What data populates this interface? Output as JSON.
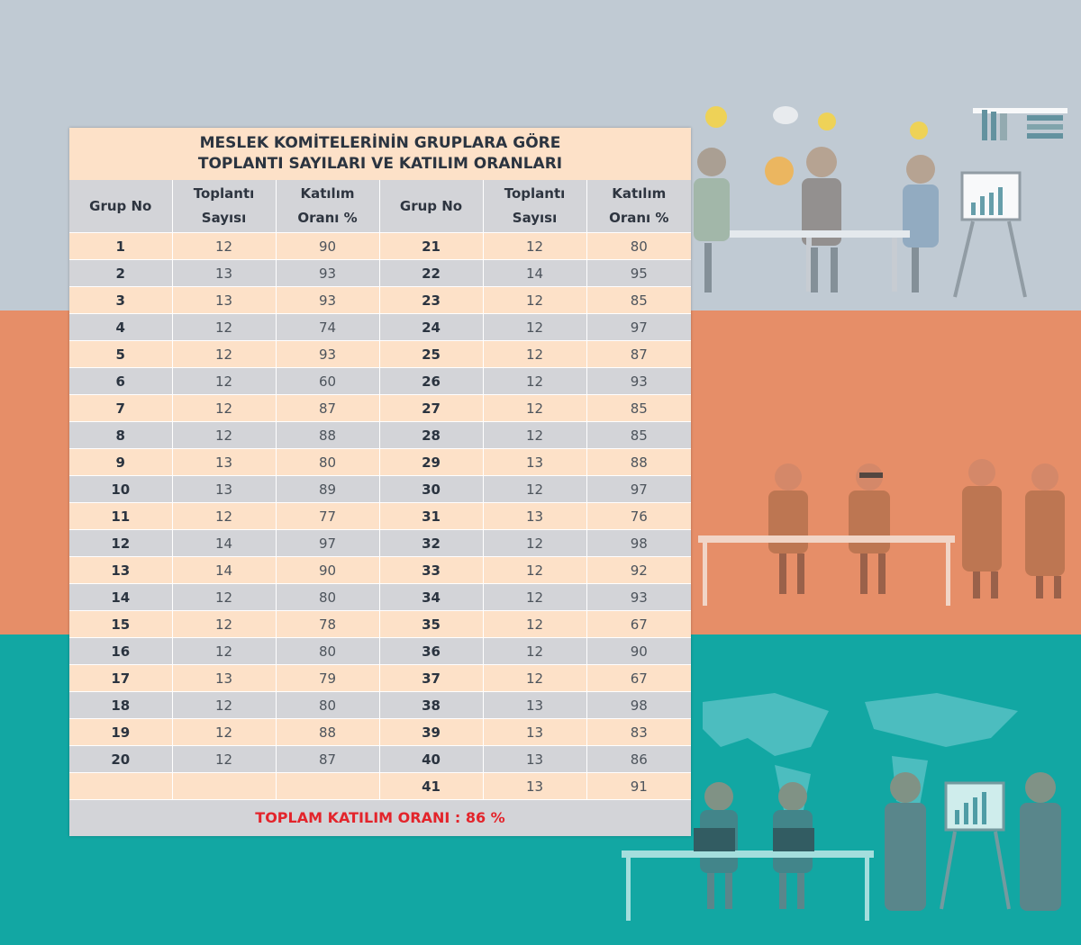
{
  "title_line1": "MESLEK KOMİTELERİNİN GRUPLARA GÖRE",
  "title_line2": "TOPLANTI SAYILARI VE KATILIM ORANLARI",
  "headers": {
    "grup_no": "Grup No",
    "toplanti_1": "Toplantı",
    "toplanti_2": "Sayısı",
    "katilim_1": "Katılım",
    "katilim_2": "Oranı %"
  },
  "rows": [
    [
      "1",
      "12",
      "90",
      "21",
      "12",
      "80"
    ],
    [
      "2",
      "13",
      "93",
      "22",
      "14",
      "95"
    ],
    [
      "3",
      "13",
      "93",
      "23",
      "12",
      "85"
    ],
    [
      "4",
      "12",
      "74",
      "24",
      "12",
      "97"
    ],
    [
      "5",
      "12",
      "93",
      "25",
      "12",
      "87"
    ],
    [
      "6",
      "12",
      "60",
      "26",
      "12",
      "93"
    ],
    [
      "7",
      "12",
      "87",
      "27",
      "12",
      "85"
    ],
    [
      "8",
      "12",
      "88",
      "28",
      "12",
      "85"
    ],
    [
      "9",
      "13",
      "80",
      "29",
      "13",
      "88"
    ],
    [
      "10",
      "13",
      "89",
      "30",
      "12",
      "97"
    ],
    [
      "11",
      "12",
      "77",
      "31",
      "13",
      "76"
    ],
    [
      "12",
      "14",
      "97",
      "32",
      "12",
      "98"
    ],
    [
      "13",
      "14",
      "90",
      "33",
      "12",
      "92"
    ],
    [
      "14",
      "12",
      "80",
      "34",
      "12",
      "93"
    ],
    [
      "15",
      "12",
      "78",
      "35",
      "12",
      "67"
    ],
    [
      "16",
      "12",
      "80",
      "36",
      "12",
      "90"
    ],
    [
      "17",
      "13",
      "79",
      "37",
      "12",
      "67"
    ],
    [
      "18",
      "12",
      "80",
      "38",
      "13",
      "98"
    ],
    [
      "19",
      "12",
      "88",
      "39",
      "13",
      "83"
    ],
    [
      "20",
      "12",
      "87",
      "40",
      "13",
      "86"
    ],
    [
      "",
      "",
      "",
      "41",
      "13",
      "91"
    ]
  ],
  "total": "TOPLAM  KATILIM ORANI : 86 %",
  "colors": {
    "band_top": "#c0cad3",
    "band_mid": "#e68e68",
    "band_bot": "#12a7a3",
    "row_peach": "#fde1c8",
    "row_gray": "#d3d4d8",
    "total_red": "#e3242b"
  }
}
